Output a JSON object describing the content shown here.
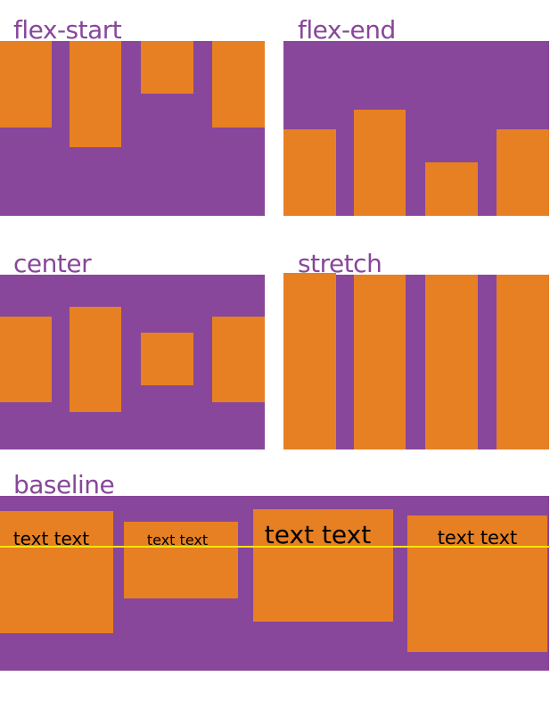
{
  "colors": {
    "container": "#88479a",
    "item": "#e78023",
    "baseline_line": "#f5e40c",
    "label": "#88479a"
  },
  "panels": [
    {
      "label": "flex-start"
    },
    {
      "label": "flex-end"
    },
    {
      "label": "center"
    },
    {
      "label": "stretch"
    },
    {
      "label": "baseline",
      "items": [
        {
          "text": "text text"
        },
        {
          "text": "text text"
        },
        {
          "text": "text text"
        },
        {
          "text": "text text"
        }
      ]
    }
  ]
}
